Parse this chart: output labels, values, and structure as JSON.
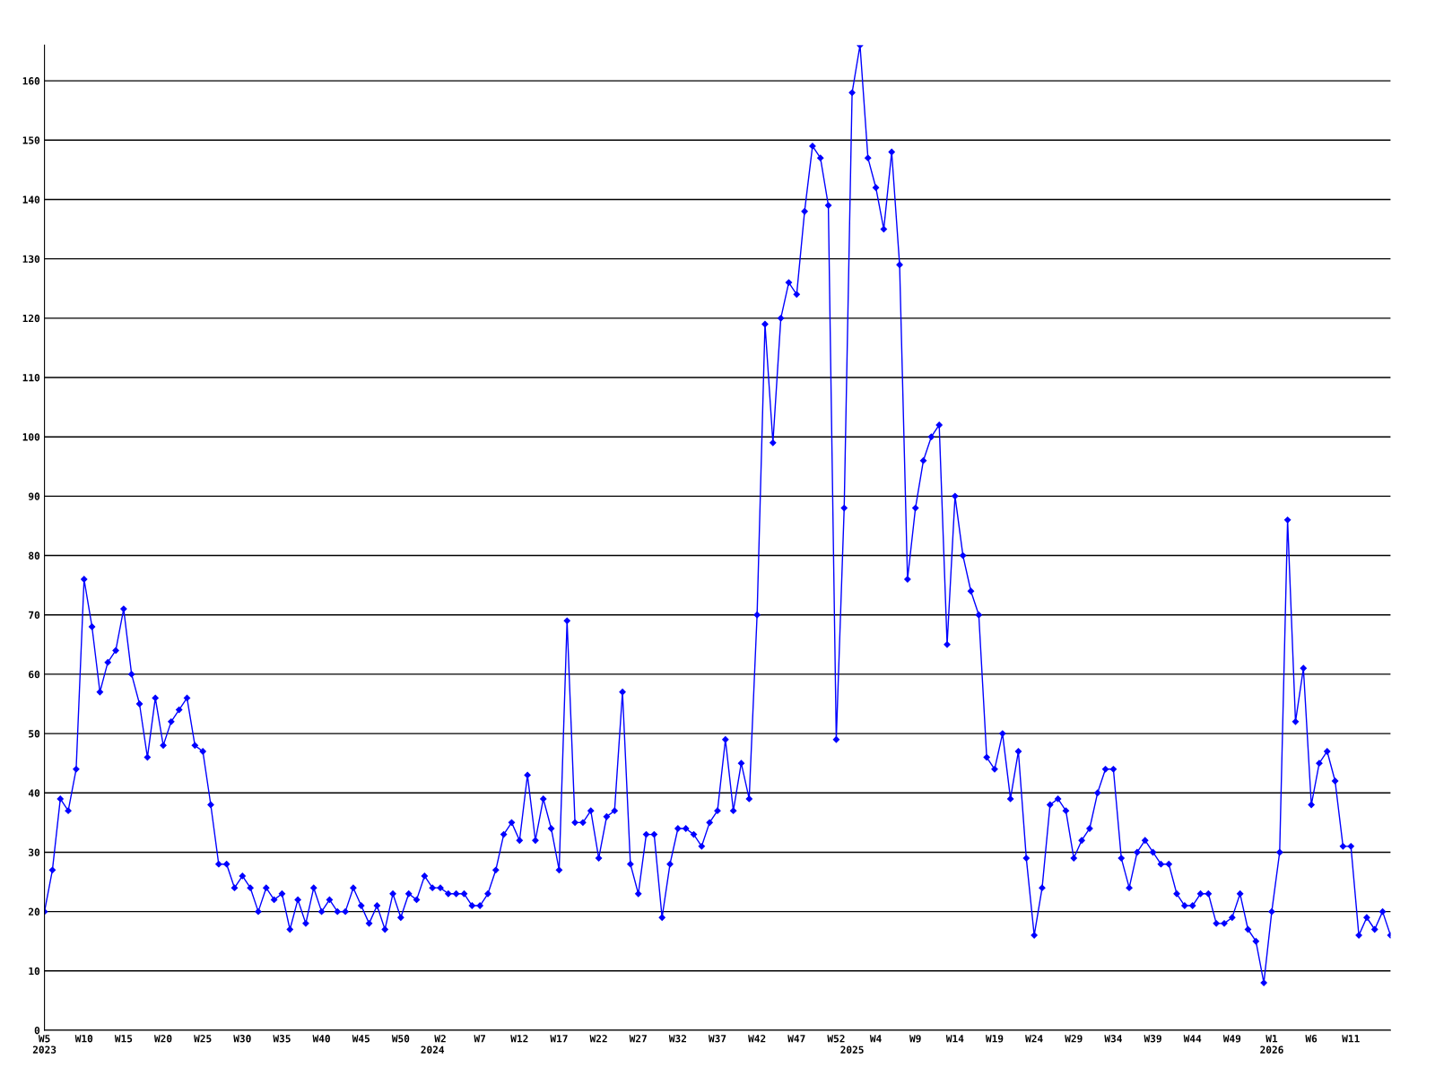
{
  "chart_data": {
    "type": "line",
    "categories": [
      "W5\n2023",
      null,
      null,
      null,
      null,
      "W10",
      null,
      null,
      null,
      null,
      "W15",
      null,
      null,
      null,
      null,
      "W20",
      null,
      null,
      null,
      null,
      "W25",
      null,
      null,
      null,
      null,
      "W30",
      null,
      null,
      null,
      null,
      "W35",
      null,
      null,
      null,
      null,
      "W40",
      null,
      null,
      null,
      null,
      "W45",
      null,
      null,
      null,
      null,
      "W50",
      null,
      null,
      null,
      "\n2024",
      "W2",
      null,
      null,
      null,
      null,
      "W7",
      null,
      null,
      null,
      null,
      "W12",
      null,
      null,
      null,
      null,
      "W17",
      null,
      null,
      null,
      null,
      "W22",
      null,
      null,
      null,
      null,
      "W27",
      null,
      null,
      null,
      null,
      "W32",
      null,
      null,
      null,
      null,
      "W37",
      null,
      null,
      null,
      null,
      "W42",
      null,
      null,
      null,
      null,
      "W47",
      null,
      null,
      null,
      null,
      "W52",
      null,
      "\n2025",
      null,
      null,
      "W4",
      null,
      null,
      null,
      null,
      "W9",
      null,
      null,
      null,
      null,
      "W14",
      null,
      null,
      null,
      null,
      "W19",
      null,
      null,
      null,
      null,
      "W24",
      null,
      null,
      null,
      null,
      "W29",
      null,
      null,
      null,
      null,
      "W34",
      null,
      null,
      null,
      null,
      "W39",
      null,
      null,
      null,
      null,
      "W44",
      null,
      null,
      null,
      null,
      "W49",
      null,
      null,
      null,
      null,
      "W1\n2026",
      null,
      null,
      null,
      null,
      "W6",
      null,
      null,
      null,
      null,
      "W11",
      null,
      null,
      null,
      null,
      null
    ],
    "series": [
      {
        "color": "#0000ff",
        "values": [
          20,
          27,
          39,
          37,
          44,
          76,
          68,
          57,
          62,
          64,
          71,
          60,
          55,
          46,
          56,
          48,
          52,
          54,
          56,
          48,
          47,
          38,
          28,
          28,
          24,
          26,
          24,
          20,
          24,
          22,
          23,
          17,
          22,
          18,
          24,
          20,
          22,
          20,
          20,
          24,
          21,
          18,
          21,
          17,
          23,
          19,
          23,
          22,
          26,
          24,
          24,
          23,
          23,
          23,
          21,
          21,
          23,
          27,
          33,
          35,
          32,
          43,
          32,
          39,
          34,
          27,
          69,
          35,
          35,
          37,
          29,
          36,
          37,
          57,
          28,
          23,
          33,
          33,
          19,
          28,
          34,
          34,
          33,
          31,
          35,
          37,
          49,
          37,
          45,
          39,
          70,
          119,
          99,
          120,
          126,
          124,
          138,
          149,
          147,
          139,
          49,
          88,
          158,
          166,
          147,
          142,
          135,
          148,
          129,
          76,
          88,
          96,
          100,
          102,
          65,
          90,
          80,
          74,
          70,
          46,
          44,
          50,
          39,
          47,
          29,
          16,
          24,
          38,
          39,
          37,
          29,
          32,
          34,
          40,
          44,
          44,
          29,
          24,
          30,
          32,
          30,
          28,
          28,
          23,
          21,
          21,
          23,
          23,
          18,
          18,
          19,
          23,
          17,
          15,
          8,
          20,
          30,
          86,
          52,
          61,
          38,
          45,
          47,
          42,
          31,
          31,
          16,
          19,
          17,
          20,
          16
        ]
      }
    ],
    "ylim": [
      0,
      166
    ],
    "yticks": [
      0,
      10,
      20,
      30,
      40,
      50,
      60,
      70,
      80,
      90,
      100,
      110,
      120,
      130,
      140,
      150,
      160
    ],
    "grid": "y",
    "marker": "diamond",
    "line_style": "solid"
  }
}
